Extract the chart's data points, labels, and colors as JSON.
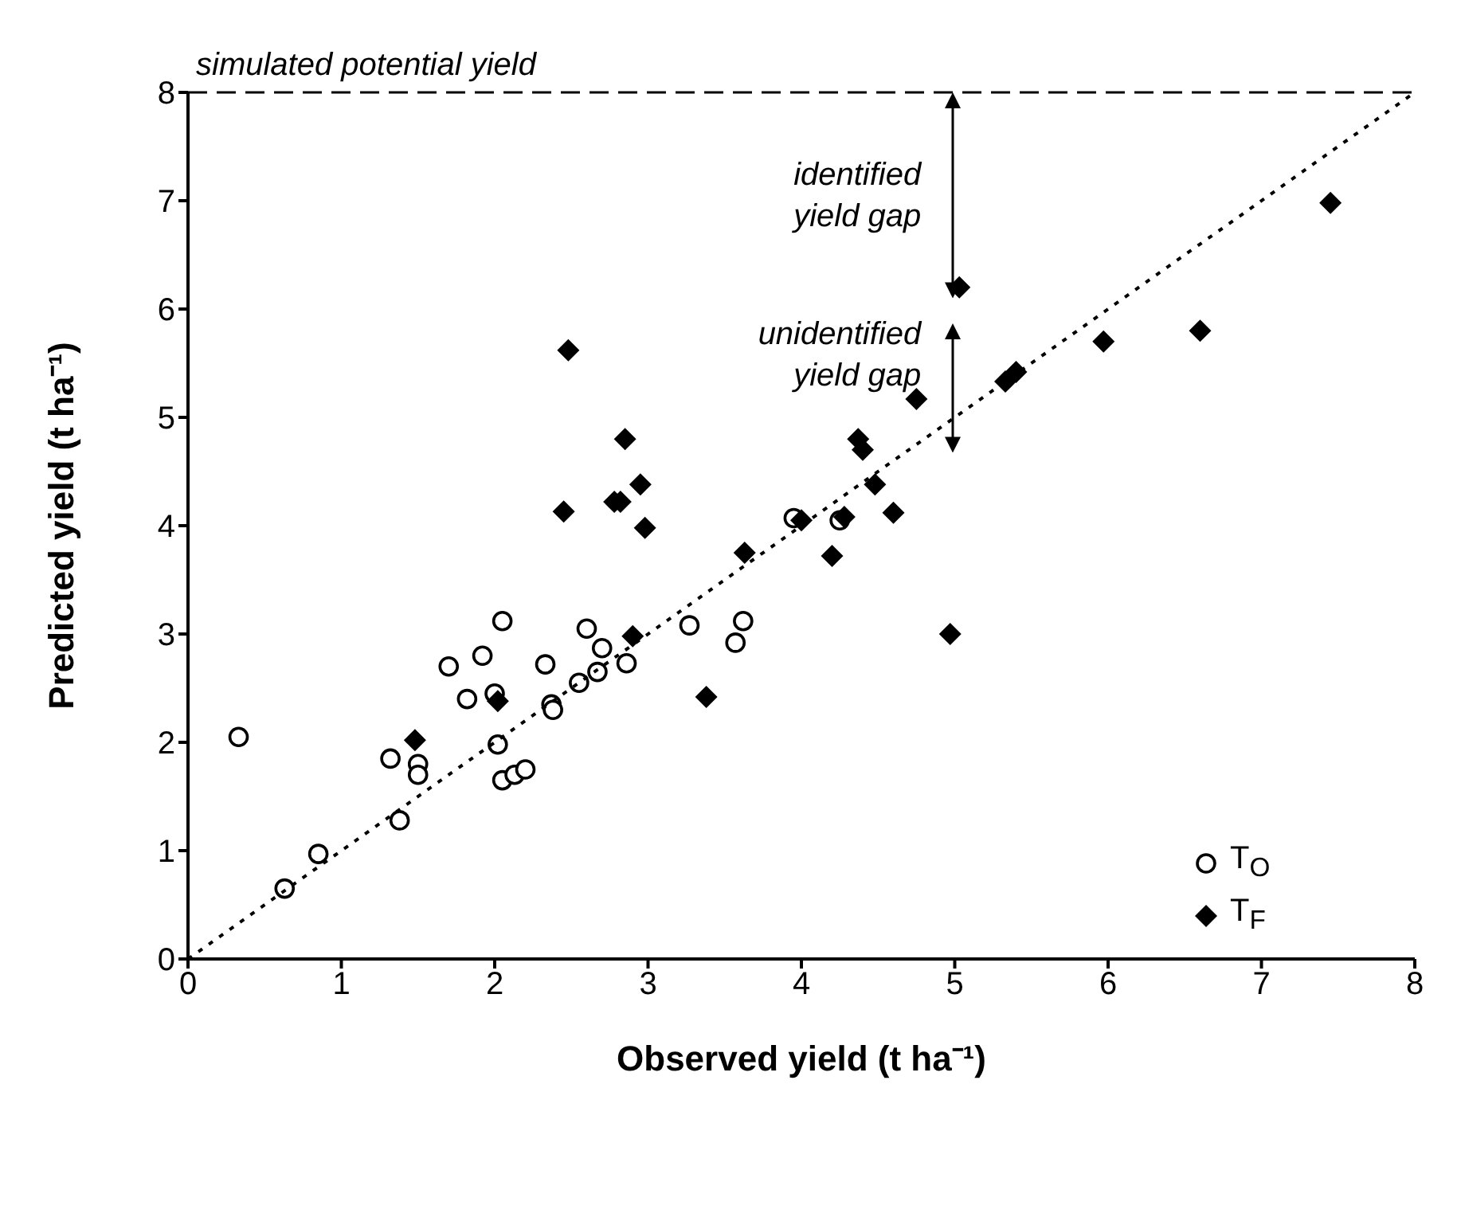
{
  "chart_data": {
    "type": "scatter",
    "xlabel": "Observed yield (t ha⁻¹)",
    "ylabel": "Predicted yield (t ha⁻¹)",
    "xlim": [
      0,
      8
    ],
    "ylim": [
      0,
      8
    ],
    "xticks": [
      0,
      1,
      2,
      3,
      4,
      5,
      6,
      7,
      8
    ],
    "yticks": [
      0,
      1,
      2,
      3,
      4,
      5,
      6,
      7,
      8
    ],
    "grid": false,
    "legend": "bottom right",
    "series": [
      {
        "name": "T$_{O}$",
        "marker": "circle",
        "color": "#000000",
        "x": [
          0.33,
          0.63,
          0.85,
          1.32,
          1.38,
          1.5,
          1.5,
          1.7,
          1.82,
          1.92,
          2.0,
          2.02,
          2.05,
          2.05,
          2.13,
          2.2,
          2.33,
          2.37,
          2.38,
          2.55,
          2.6,
          2.67,
          2.7,
          2.86,
          3.27,
          3.57,
          3.62,
          3.95,
          4.25
        ],
        "values": [
          2.05,
          0.65,
          0.97,
          1.85,
          1.28,
          1.8,
          1.7,
          2.7,
          2.4,
          2.8,
          2.45,
          1.98,
          3.12,
          1.65,
          1.7,
          1.75,
          2.72,
          2.35,
          2.3,
          2.55,
          3.05,
          2.65,
          2.87,
          2.73,
          3.08,
          2.92,
          3.12,
          4.07,
          4.05
        ]
      },
      {
        "name": "T$_{F}$",
        "marker": "diamond",
        "color": "#000000",
        "x": [
          1.48,
          2.02,
          2.45,
          2.48,
          2.78,
          2.82,
          2.85,
          2.9,
          2.95,
          2.98,
          3.38,
          3.63,
          4.0,
          4.2,
          4.28,
          4.37,
          4.4,
          4.48,
          4.6,
          4.75,
          4.97,
          5.03,
          5.33,
          5.4,
          5.97,
          6.6,
          7.45
        ],
        "values": [
          2.02,
          2.38,
          4.13,
          5.62,
          4.22,
          4.22,
          4.8,
          2.98,
          4.38,
          3.98,
          2.42,
          3.75,
          4.05,
          3.72,
          4.08,
          4.8,
          4.7,
          4.38,
          4.12,
          5.17,
          3.0,
          6.2,
          5.33,
          5.42,
          5.7,
          5.8,
          6.98
        ]
      },
      {
        "type": "line",
        "marker": "none",
        "line_style": "dotted",
        "color": "#000000",
        "x": [
          0,
          8
        ],
        "values": [
          0,
          8
        ]
      }
    ],
    "ref_lines": [
      {
        "axis": "y",
        "value": 8,
        "label": "simulated potential yield",
        "line_style": "dashed",
        "color": "#000000"
      }
    ],
    "annotations": [
      {
        "text": "identified yield gap",
        "x": 5.03,
        "y": 6.2
      },
      {
        "text": "unidentified yield gap",
        "x": 5.03,
        "y": 6.2
      }
    ]
  }
}
